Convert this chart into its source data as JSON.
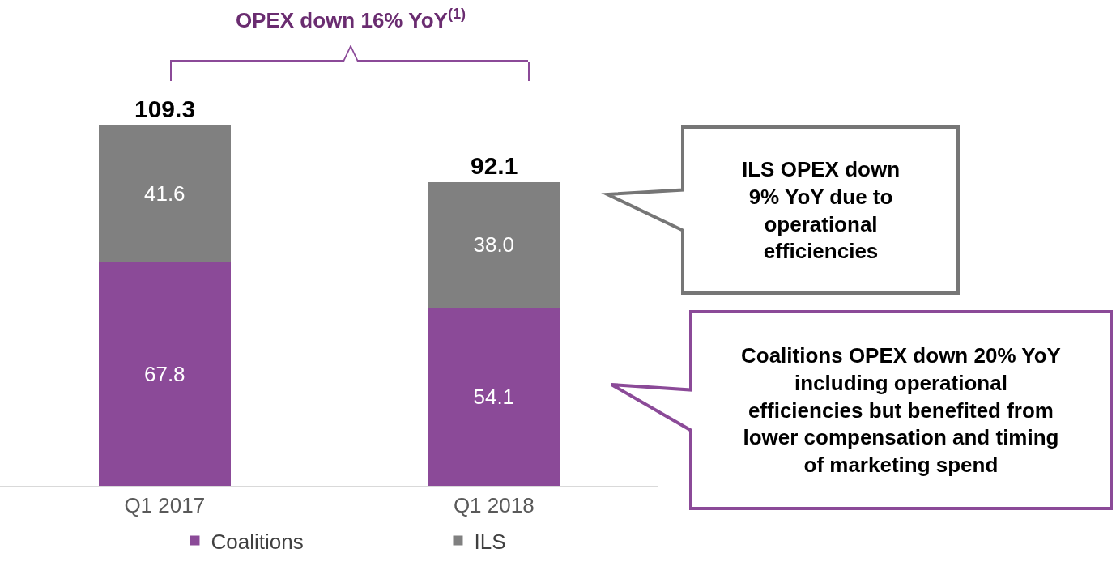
{
  "chart_data": {
    "type": "bar",
    "stacked": true,
    "title": "OPEX down 16% YoY$^{(1)}$",
    "categories": [
      "Q1 2017",
      "Q1 2018"
    ],
    "series": [
      {
        "name": "Coalitions",
        "color": "#8b4a98",
        "values": [
          67.8,
          54.1
        ],
        "value_labels": [
          "67.8",
          "54.1"
        ]
      },
      {
        "name": "ILS",
        "color": "#808080",
        "values": [
          41.6,
          38.0
        ],
        "value_labels": [
          "41.6",
          "38.0"
        ]
      }
    ],
    "data_labels": true,
    "totals": [
      "109.3",
      "92.1"
    ],
    "tick_labels": "x",
    "legend": "bottom",
    "annotations": [
      "ILS OPEX down 9% YoY due to operational efficiencies",
      "Coalitions OPEX down 20% YoY including operational efficiencies but benefited from lower compensation and timing of marketing spend"
    ]
  }
}
